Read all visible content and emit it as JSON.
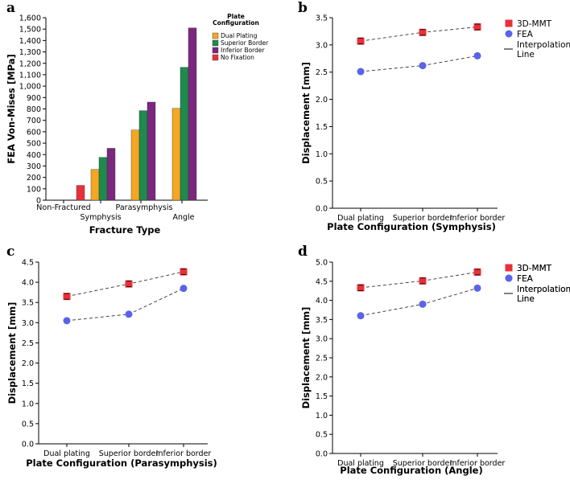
{
  "chart_data": [
    {
      "panel": "a",
      "type": "bar",
      "xlabel": "Fracture Type",
      "ylabel": "FEA Von-Mises [MPa]",
      "ylim": [
        0,
        1600
      ],
      "yticks": [
        "0",
        "100",
        "200",
        "300",
        "400",
        "500",
        "600",
        "700",
        "800",
        "900",
        "1,000",
        "1,100",
        "1,200",
        "1,300",
        "1,400",
        "1,500",
        "1,600"
      ],
      "categories": [
        "Non-Fractured",
        "Symphysis",
        "Parasymphysis",
        "Angle"
      ],
      "legend_title": "Plate Configuration",
      "series": [
        {
          "name": "Dual Plating",
          "color": "#f5a623",
          "values": [
            null,
            270,
            615,
            805
          ]
        },
        {
          "name": "Superior Border",
          "color": "#1e8a4c",
          "values": [
            null,
            375,
            785,
            1165
          ]
        },
        {
          "name": "Inferior Border",
          "color": "#7b2680",
          "values": [
            null,
            455,
            860,
            1510
          ]
        },
        {
          "name": "No Fixation",
          "color": "#e8303a",
          "values": [
            130,
            null,
            null,
            null
          ]
        }
      ]
    },
    {
      "panel": "b",
      "type": "scatter",
      "xlabel": "Plate Configuration (Symphysis)",
      "ylabel": "Displacement [mm]",
      "ylim": [
        0,
        3.5
      ],
      "yticks": [
        "0.0",
        "0.5",
        "1.0",
        "1.5",
        "2.0",
        "2.5",
        "3.0",
        "3.5"
      ],
      "categories": [
        "Dual plating",
        "Superior border",
        "Inferior border"
      ],
      "series": [
        {
          "name": "3D-MMT",
          "color": "#e8303a",
          "marker": "square",
          "values": [
            3.07,
            3.23,
            3.33
          ]
        },
        {
          "name": "FEA",
          "color": "#5b63e8",
          "marker": "circle",
          "values": [
            2.51,
            2.62,
            2.8
          ]
        }
      ],
      "legend_line": "Interpolation Line"
    },
    {
      "panel": "c",
      "type": "scatter",
      "xlabel": "Plate Configuration (Parasymphysis)",
      "ylabel": "Displacement [mm]",
      "ylim": [
        0,
        4.5
      ],
      "yticks": [
        "0.0",
        "0.5",
        "1.0",
        "1.5",
        "2.0",
        "2.5",
        "3.0",
        "3.5",
        "4.0",
        "4.5"
      ],
      "categories": [
        "Dual plating",
        "Superior border",
        "Inferior border"
      ],
      "series": [
        {
          "name": "3D-MMT",
          "color": "#e8303a",
          "marker": "square",
          "values": [
            3.65,
            3.96,
            4.26
          ]
        },
        {
          "name": "FEA",
          "color": "#5b63e8",
          "marker": "circle",
          "values": [
            3.05,
            3.21,
            3.85
          ]
        }
      ],
      "legend_line": "Interpolation Line"
    },
    {
      "panel": "d",
      "type": "scatter",
      "xlabel": "Plate Configuration (Angle)",
      "ylabel": "Displacement [mm]",
      "ylim": [
        0,
        5.0
      ],
      "yticks": [
        "0.0",
        "0.5",
        "1.0",
        "1.5",
        "2.0",
        "2.5",
        "3.0",
        "3.5",
        "4.0",
        "4.5",
        "5.0"
      ],
      "categories": [
        "Dual plating",
        "Superior border",
        "Inferior border"
      ],
      "series": [
        {
          "name": "3D-MMT",
          "color": "#e8303a",
          "marker": "square",
          "values": [
            4.33,
            4.51,
            4.74
          ]
        },
        {
          "name": "FEA",
          "color": "#5b63e8",
          "marker": "circle",
          "values": [
            3.6,
            3.9,
            4.32
          ]
        }
      ],
      "legend_line": "Interpolation Line"
    }
  ]
}
